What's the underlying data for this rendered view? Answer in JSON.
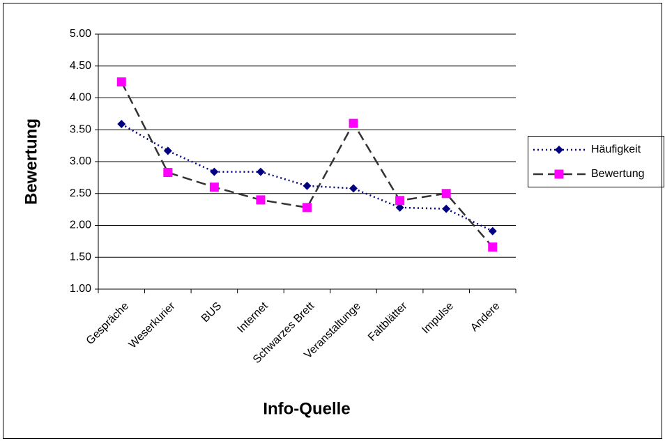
{
  "chart_data": {
    "type": "line",
    "x_label": "Info-Quelle",
    "y_label": "Bewertung",
    "categories": [
      "Gespräche",
      "Weserkurier",
      "BUS",
      "Internet",
      "Schwarzes Brett",
      "Veranstaltunge",
      "Faltblätter",
      "Impulse",
      "Andere"
    ],
    "series": [
      {
        "name": "Häufigkeit",
        "color": "#000080",
        "marker_color": "#000080",
        "marker": "diamond",
        "line_style": "dotted",
        "values": [
          3.59,
          3.17,
          2.84,
          2.84,
          2.62,
          2.58,
          2.28,
          2.26,
          1.91
        ]
      },
      {
        "name": "Bewertung",
        "color": "#333333",
        "marker_color": "#ff00ff",
        "marker": "square",
        "line_style": "dashed",
        "values": [
          4.25,
          2.83,
          2.6,
          2.4,
          2.28,
          3.6,
          2.39,
          2.5,
          1.66
        ]
      }
    ],
    "ylim": [
      1,
      5
    ],
    "yticks": [
      {
        "value": 1,
        "label": "1.00"
      },
      {
        "value": 1.5,
        "label": "1.50"
      },
      {
        "value": 2,
        "label": "2.00"
      },
      {
        "value": 2.5,
        "label": "2.50"
      },
      {
        "value": 3,
        "label": "3.00"
      },
      {
        "value": 3.5,
        "label": "3.50"
      },
      {
        "value": 4,
        "label": "4.00"
      },
      {
        "value": 4.5,
        "label": "4.50"
      },
      {
        "value": 5,
        "label": "5.00"
      }
    ],
    "grid": true,
    "legend": "right"
  }
}
